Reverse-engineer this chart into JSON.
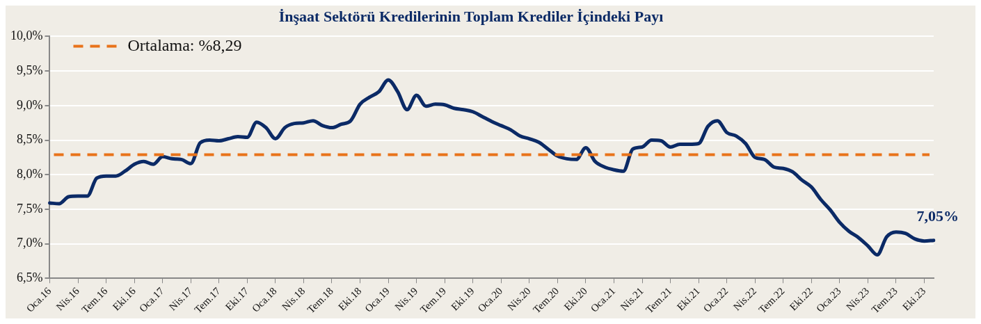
{
  "chart_data": {
    "type": "line",
    "title": "İnşaat Sektörü Kredilerinin Toplam Krediler İçindeki Payı",
    "categories": [
      "Oca.16",
      null,
      null,
      "Nis.16",
      null,
      null,
      "Tem.16",
      null,
      null,
      "Eki.16",
      null,
      null,
      "Oca.17",
      null,
      null,
      "Nis.17",
      null,
      null,
      "Tem.17",
      null,
      null,
      "Eki.17",
      null,
      null,
      "Oca.18",
      null,
      null,
      "Nis.18",
      null,
      null,
      "Tem.18",
      null,
      null,
      "Eki.18",
      null,
      null,
      "Oca.19",
      null,
      null,
      "Nis.19",
      null,
      null,
      "Tem.19",
      null,
      null,
      "Eki.19",
      null,
      null,
      "Oca.20",
      null,
      null,
      "Nis.20",
      null,
      null,
      "Tem.20",
      null,
      null,
      "Eki.20",
      null,
      null,
      "Oca.21",
      null,
      null,
      "Nis.21",
      null,
      null,
      "Tem.21",
      null,
      null,
      "Eki.21",
      null,
      null,
      "Oca.22",
      null,
      null,
      "Nis.22",
      null,
      null,
      "Tem.22",
      null,
      null,
      "Eki.22",
      null,
      null,
      "Oca.23",
      null,
      null,
      "Nis.23",
      null,
      null,
      "Tem.23",
      null,
      null,
      "Eki.23",
      null
    ],
    "series": [
      {
        "color": "#0b2a66",
        "values": [
          7.59,
          7.58,
          7.68,
          7.69,
          7.69,
          7.95,
          7.98,
          7.98,
          8.05,
          8.15,
          8.19,
          8.15,
          8.26,
          8.23,
          8.22,
          8.16,
          8.46,
          8.5,
          8.49,
          8.52,
          8.55,
          8.54,
          8.76,
          8.68,
          8.52,
          8.68,
          8.74,
          8.75,
          8.78,
          8.71,
          8.68,
          8.73,
          8.78,
          9.02,
          9.12,
          9.2,
          9.37,
          9.2,
          8.94,
          9.15,
          8.99,
          9.02,
          9.01,
          8.96,
          8.94,
          8.91,
          8.84,
          8.77,
          8.71,
          8.65,
          8.56,
          8.52,
          8.47,
          8.37,
          8.27,
          8.23,
          8.22,
          8.39,
          8.19,
          8.11,
          8.07,
          8.05,
          8.37,
          8.4,
          8.5,
          8.49,
          8.4,
          8.44,
          8.44,
          8.45,
          8.7,
          8.78,
          8.61,
          8.56,
          8.45,
          8.25,
          8.22,
          8.11,
          8.09,
          8.04,
          7.92,
          7.82,
          7.64,
          7.49,
          7.31,
          7.18,
          7.09,
          6.97,
          6.84,
          7.1,
          7.17,
          7.15,
          7.07,
          7.04,
          7.05
        ],
        "value_labels": [
          null,
          null,
          null,
          null,
          null,
          null,
          null,
          null,
          null,
          null,
          null,
          null,
          null,
          null,
          null,
          null,
          null,
          null,
          null,
          null,
          null,
          null,
          null,
          null,
          null,
          null,
          null,
          null,
          null,
          null,
          null,
          null,
          null,
          null,
          null,
          null,
          null,
          null,
          null,
          null,
          null,
          null,
          null,
          null,
          null,
          null,
          null,
          null,
          null,
          null,
          null,
          null,
          null,
          null,
          null,
          null,
          null,
          null,
          null,
          null,
          null,
          null,
          null,
          null,
          null,
          null,
          null,
          null,
          null,
          null,
          null,
          null,
          null,
          null,
          null,
          null,
          null,
          null,
          null,
          null,
          null,
          null,
          null,
          null,
          null,
          null,
          null,
          null,
          null,
          null,
          null,
          null,
          null,
          null,
          "7,05%"
        ]
      }
    ],
    "ylim": [
      6.5,
      10.0
    ],
    "yticks": [
      {
        "value": 6.5,
        "label": "6,5%"
      },
      {
        "value": 7.0,
        "label": "7,0%"
      },
      {
        "value": 7.5,
        "label": "7,5%"
      },
      {
        "value": 8.0,
        "label": "8,0%"
      },
      {
        "value": 8.5,
        "label": "8,5%"
      },
      {
        "value": 9.0,
        "label": "9,0%"
      },
      {
        "value": 9.5,
        "label": "9,5%"
      },
      {
        "value": 10.0,
        "label": "10,0%"
      }
    ],
    "ref_lines": [
      {
        "axis": "y",
        "value": 8.29,
        "label": "Ortalama: %8,29",
        "color": "#e8731a",
        "line_style": "dashed"
      }
    ],
    "grid": "y",
    "legend": "top left",
    "marker": "none",
    "line_style": "solid"
  }
}
